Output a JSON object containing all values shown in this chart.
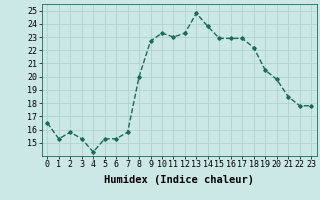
{
  "x": [
    0,
    1,
    2,
    3,
    4,
    5,
    6,
    7,
    8,
    9,
    10,
    11,
    12,
    13,
    14,
    15,
    16,
    17,
    18,
    19,
    20,
    21,
    22,
    23
  ],
  "y": [
    16.5,
    15.3,
    15.8,
    15.3,
    14.3,
    15.3,
    15.3,
    15.8,
    20.0,
    22.7,
    23.3,
    23.0,
    23.3,
    24.8,
    23.8,
    22.9,
    22.9,
    22.9,
    22.2,
    20.5,
    19.8,
    18.5,
    17.8,
    17.8
  ],
  "line_color": "#1a6b5a",
  "marker": "D",
  "marker_size": 1.8,
  "bg_color": "#cce8e6",
  "grid_color": "#aacfcc",
  "xlabel": "Humidex (Indice chaleur)",
  "xlim": [
    -0.5,
    23.5
  ],
  "ylim": [
    14,
    25.5
  ],
  "yticks": [
    15,
    16,
    17,
    18,
    19,
    20,
    21,
    22,
    23,
    24,
    25
  ],
  "xticks": [
    0,
    1,
    2,
    3,
    4,
    5,
    6,
    7,
    8,
    9,
    10,
    11,
    12,
    13,
    14,
    15,
    16,
    17,
    18,
    19,
    20,
    21,
    22,
    23
  ],
  "xlabel_fontsize": 7.5,
  "tick_fontsize": 6.0,
  "line_width": 1.0
}
